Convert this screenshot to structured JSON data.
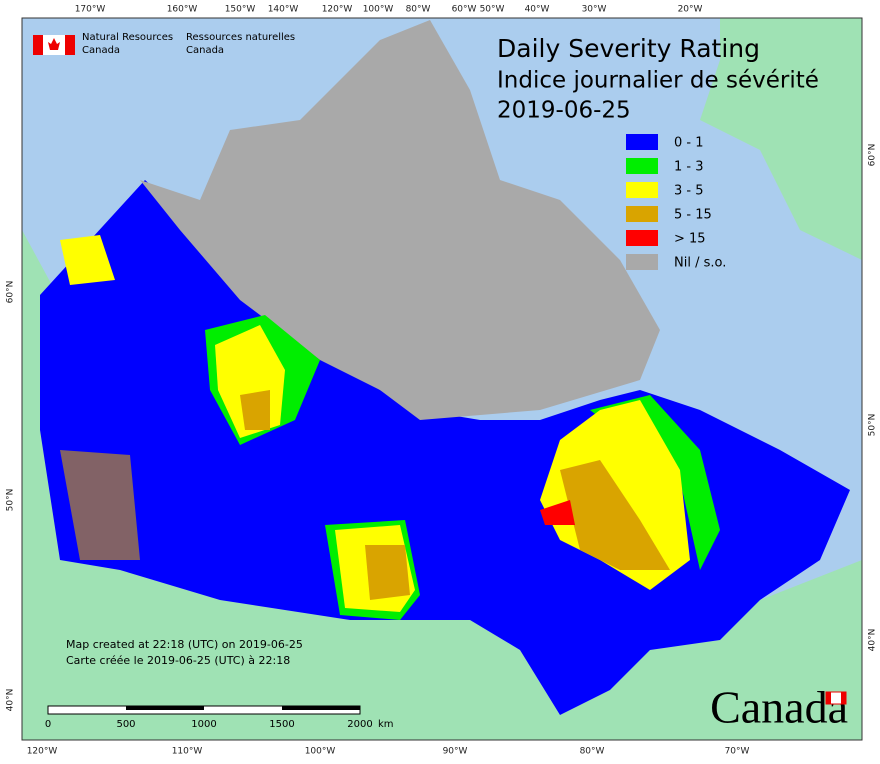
{
  "header": {
    "org_en": [
      "Natural Resources",
      "Canada"
    ],
    "org_fr": [
      "Ressources naturelles",
      "Canada"
    ]
  },
  "title": {
    "en": "Daily Severity Rating",
    "fr": "Indice journalier de sévérité",
    "date": "2019-06-25"
  },
  "legend": [
    {
      "label": "0 - 1",
      "color": "#0000ff"
    },
    {
      "label": "1 - 3",
      "color": "#00ee00"
    },
    {
      "label": "3 - 5",
      "color": "#ffff00"
    },
    {
      "label": "5 - 15",
      "color": "#d9a400"
    },
    {
      "label": "> 15",
      "color": "#ff0000"
    },
    {
      "label": "Nil / s.o.",
      "color": "#a9a9a9"
    }
  ],
  "graticule": {
    "top": [
      "170°W",
      "160°W",
      "150°W",
      "140°W",
      "120°W",
      "100°W",
      "80°W",
      "60°W",
      "50°W",
      "40°W",
      "30°W",
      "20°W"
    ],
    "bottom": [
      "120°W",
      "110°W",
      "100°W",
      "90°W",
      "80°W",
      "70°W"
    ],
    "left": [
      "60°N",
      "50°N",
      "40°N"
    ],
    "right": [
      "60°N",
      "50°N",
      "40°N"
    ]
  },
  "footer": {
    "created_en": "Map created at 22:18 (UTC) on 2019-06-25",
    "created_fr": "Carte créée le 2019-06-25 (UTC) à 22:18"
  },
  "scale_bar": {
    "labels": [
      "0",
      "500",
      "1000",
      "1500",
      "2000"
    ],
    "unit": "km"
  },
  "wordmark": "Canada"
}
